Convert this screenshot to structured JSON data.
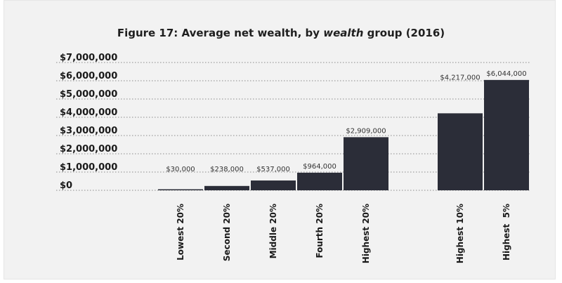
{
  "chart_data": {
    "type": "bar",
    "title_parts": [
      "Figure 17: Average net wealth, by ",
      "wealth",
      " group (2016)"
    ],
    "title": "Figure 17: Average net wealth, by wealth group (2016)",
    "xlabel": "",
    "ylabel": "",
    "ylim": [
      0,
      7000000
    ],
    "y_ticks": [
      {
        "value": 0,
        "label": "$0"
      },
      {
        "value": 1000000,
        "label": "$1,000,000"
      },
      {
        "value": 2000000,
        "label": "$2,000,000"
      },
      {
        "value": 3000000,
        "label": "$3,000,000"
      },
      {
        "value": 4000000,
        "label": "$4,000,000"
      },
      {
        "value": 5000000,
        "label": "$5,000,000"
      },
      {
        "value": 6000000,
        "label": "$6,000,000"
      },
      {
        "value": 7000000,
        "label": "$7,000,000"
      }
    ],
    "grid": true,
    "categories": [
      "Lowest 20%",
      "Second 20%",
      "Middle 20%",
      "Fourth 20%",
      "Highest 20%",
      "Highest 10%",
      "Highest  5%"
    ],
    "values": [
      30000,
      238000,
      537000,
      964000,
      2909000,
      4217000,
      6044000
    ],
    "value_labels": [
      "$30,000",
      "$238,000",
      "$537,000",
      "$964,000",
      "$2,909,000",
      "$4,217,000",
      "$6,044,000"
    ],
    "bar_color": "#2b2d38",
    "grid_color": "#8a8a8a"
  }
}
